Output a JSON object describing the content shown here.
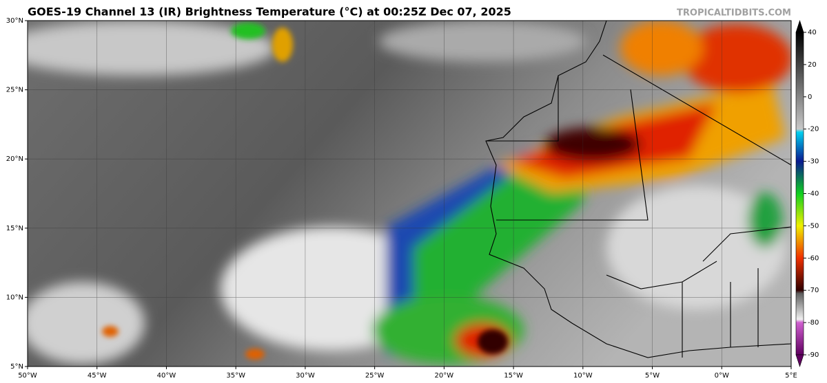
{
  "header": {
    "title": "GOES-19 Channel 13 (IR) Brightness Temperature (°C) at 00:25Z Dec 07, 2025",
    "credit": "TROPICALTIDBITS.COM"
  },
  "map": {
    "lat_labels": [
      "30°N",
      "25°N",
      "20°N",
      "15°N",
      "10°N",
      "5°N"
    ],
    "lon_labels": [
      "50°W",
      "45°W",
      "40°W",
      "35°W",
      "30°W",
      "25°W",
      "20°W",
      "15°W",
      "10°W",
      "5°W",
      "0°W",
      "5°E"
    ]
  },
  "colorbar": {
    "ticks": [
      40,
      20,
      0,
      -20,
      -30,
      -40,
      -50,
      -60,
      -70,
      -80,
      -90
    ]
  }
}
